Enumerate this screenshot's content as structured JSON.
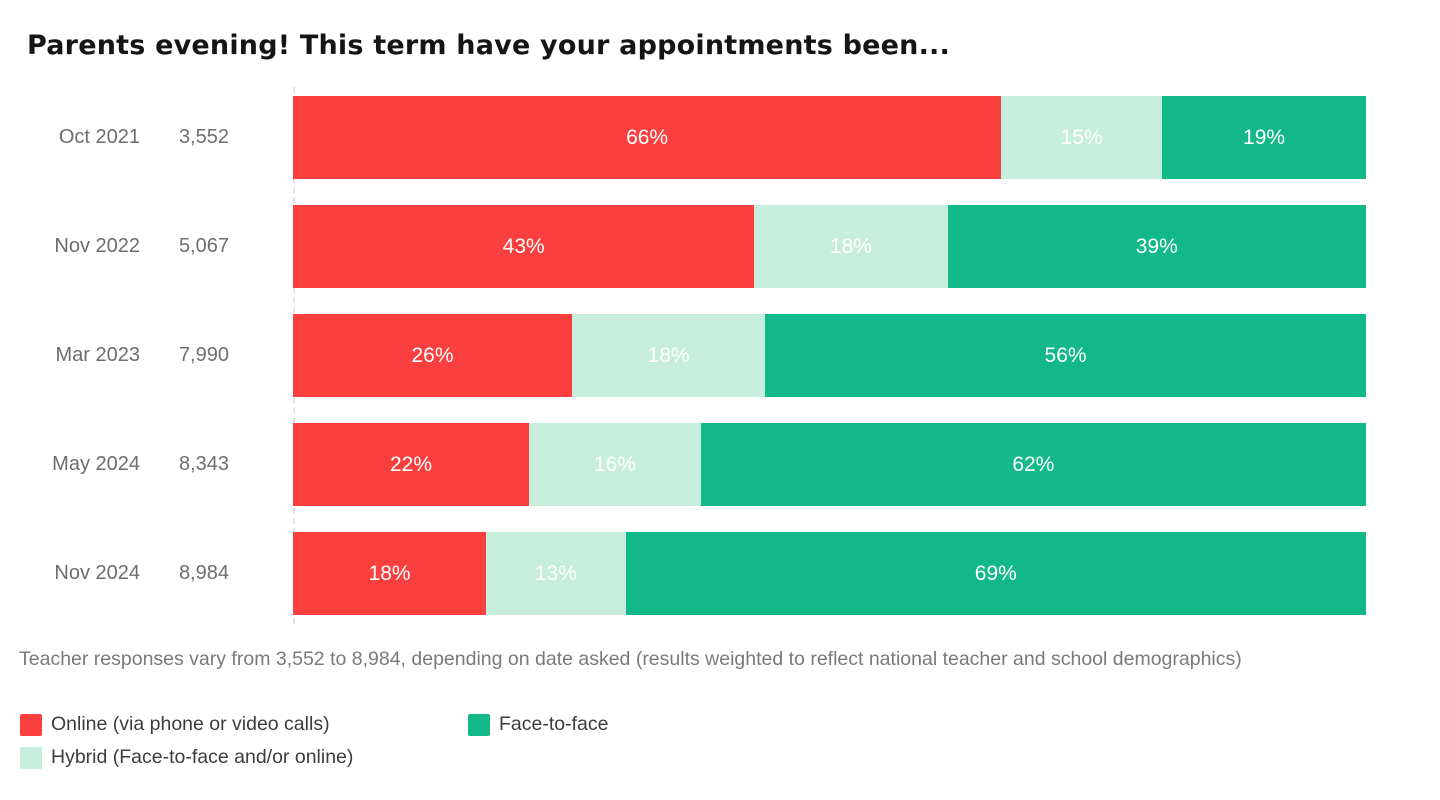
{
  "title": "Parents evening! This term have your appointments been...",
  "chart_data": {
    "type": "bar",
    "stacked": true,
    "orientation": "horizontal",
    "title": "Parents evening! This term have your appointments been...",
    "categories": [
      "Oct 2021",
      "Nov 2022",
      "Mar 2023",
      "May 2024",
      "Nov 2024"
    ],
    "response_counts": [
      "3,552",
      "5,067",
      "7,990",
      "8,343",
      "8,984"
    ],
    "series": [
      {
        "name": "Online (via phone or video calls)",
        "color": "#FA403E",
        "values": [
          66,
          43,
          26,
          22,
          18
        ]
      },
      {
        "name": "Hybrid (Face-to-face and/or online)",
        "color": "#C7EEDD",
        "values": [
          15,
          18,
          18,
          16,
          13
        ]
      },
      {
        "name": "Face-to-face",
        "color": "#13B888",
        "values": [
          19,
          39,
          56,
          62,
          69
        ]
      }
    ],
    "value_suffix": "%",
    "xlim": [
      0,
      100
    ],
    "legend_position": "bottom",
    "legend_order": [
      0,
      2,
      1
    ],
    "grid": false
  },
  "footnote": "Teacher responses vary from 3,552 to 8,984, depending on date asked (results weighted to reflect national teacher and school demographics)"
}
